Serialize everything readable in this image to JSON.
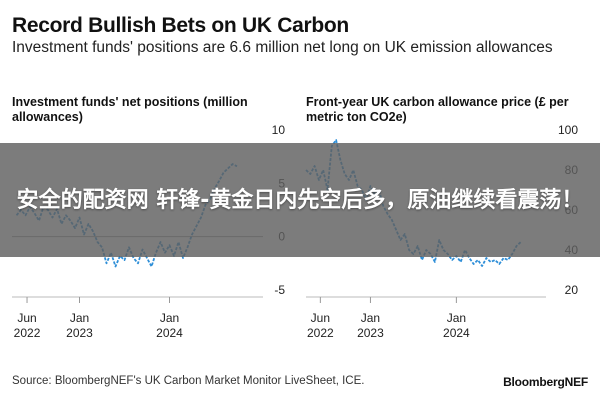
{
  "header": {
    "title": "Record Bullish Bets on UK Carbon",
    "subtitle": "Investment funds' positions are 6.6 million net long on UK emission allowances"
  },
  "overlay": {
    "text": "安全的配资网 轩锋-黄金日内先空后多，原油继续看震荡！"
  },
  "footer": {
    "source": "Source: BloombergNEF's UK Carbon Market Monitor LiveSheet, ICE.",
    "brand": "BloombergNEF"
  },
  "colors": {
    "line": "#2f8fd8",
    "baseline": "#999999"
  },
  "chart_data": [
    {
      "type": "line",
      "title": "Investment funds' net positions (million allowances)",
      "ylim": [
        -5,
        10
      ],
      "yticks": [
        10,
        5,
        0,
        -5
      ],
      "ytick_labels": [
        "10",
        "5",
        "0",
        "-5"
      ],
      "xticks": [
        {
          "pos": 2022.417,
          "line1": "Jun",
          "line2": "2022"
        },
        {
          "pos": 2023.0,
          "line1": "Jan",
          "line2": "2023"
        },
        {
          "pos": 2024.0,
          "line1": "Jan",
          "line2": "2024"
        }
      ],
      "xlim": [
        2022.25,
        2024.95
      ],
      "grid": false,
      "series": [
        {
          "x": [
            2022.3,
            2022.35,
            2022.4,
            2022.45,
            2022.5,
            2022.55,
            2022.6,
            2022.65,
            2022.7,
            2022.75,
            2022.8,
            2022.85,
            2022.9,
            2022.95,
            2023.0,
            2023.05,
            2023.1,
            2023.15,
            2023.2,
            2023.25,
            2023.3,
            2023.35,
            2023.4,
            2023.45,
            2023.5,
            2023.55,
            2023.6,
            2023.65,
            2023.7,
            2023.75,
            2023.8,
            2023.85,
            2023.9,
            2023.95,
            2024.0,
            2024.05,
            2024.1,
            2024.15,
            2024.2,
            2024.25,
            2024.3,
            2024.35,
            2024.4,
            2024.45,
            2024.5,
            2024.55,
            2024.6,
            2024.65,
            2024.7,
            2024.75
          ],
          "y": [
            2.0,
            2.5,
            2.0,
            2.8,
            2.2,
            1.5,
            2.8,
            2.5,
            1.8,
            2.6,
            1.2,
            2.0,
            1.5,
            0.8,
            1.8,
            0.2,
            1.2,
            0.5,
            -0.5,
            -1.0,
            -2.5,
            -1.5,
            -2.8,
            -1.8,
            -2.2,
            -1.0,
            -2.0,
            -2.5,
            -1.2,
            -2.0,
            -2.8,
            -1.5,
            -0.5,
            -1.5,
            -0.8,
            -1.8,
            -0.5,
            -2.0,
            -1.0,
            0.2,
            1.0,
            1.8,
            3.0,
            3.5,
            4.5,
            5.2,
            6.0,
            6.4,
            6.8,
            6.6
          ]
        }
      ]
    },
    {
      "type": "line",
      "title": "Front-year UK carbon allowance price (£ per metric ton CO2e)",
      "ylim": [
        20,
        100
      ],
      "yticks": [
        100,
        80,
        60,
        40,
        20
      ],
      "ytick_labels": [
        "100",
        "80",
        "60",
        "40",
        "20"
      ],
      "xticks": [
        {
          "pos": 2022.417,
          "line1": "Jun",
          "line2": "2022"
        },
        {
          "pos": 2023.0,
          "line1": "Jan",
          "line2": "2023"
        },
        {
          "pos": 2024.0,
          "line1": "Jan",
          "line2": "2024"
        }
      ],
      "xlim": [
        2022.25,
        2024.95
      ],
      "grid": false,
      "series": [
        {
          "x": [
            2022.25,
            2022.3,
            2022.35,
            2022.4,
            2022.45,
            2022.5,
            2022.55,
            2022.6,
            2022.65,
            2022.7,
            2022.75,
            2022.8,
            2022.85,
            2022.9,
            2022.95,
            2023.0,
            2023.05,
            2023.1,
            2023.15,
            2023.2,
            2023.25,
            2023.3,
            2023.35,
            2023.4,
            2023.45,
            2023.5,
            2023.55,
            2023.6,
            2023.65,
            2023.7,
            2023.75,
            2023.8,
            2023.85,
            2023.9,
            2023.95,
            2024.0,
            2024.05,
            2024.1,
            2024.15,
            2024.2,
            2024.25,
            2024.3,
            2024.35,
            2024.4,
            2024.45,
            2024.5,
            2024.55,
            2024.6,
            2024.65,
            2024.7,
            2024.75
          ],
          "y": [
            80,
            78,
            82,
            75,
            80,
            70,
            92,
            95,
            85,
            78,
            75,
            80,
            72,
            70,
            65,
            72,
            68,
            70,
            62,
            58,
            55,
            50,
            45,
            48,
            40,
            38,
            42,
            35,
            40,
            38,
            34,
            45,
            40,
            38,
            35,
            37,
            34,
            40,
            36,
            33,
            35,
            32,
            36,
            34,
            35,
            33,
            36,
            35,
            38,
            42,
            44
          ]
        }
      ]
    }
  ]
}
